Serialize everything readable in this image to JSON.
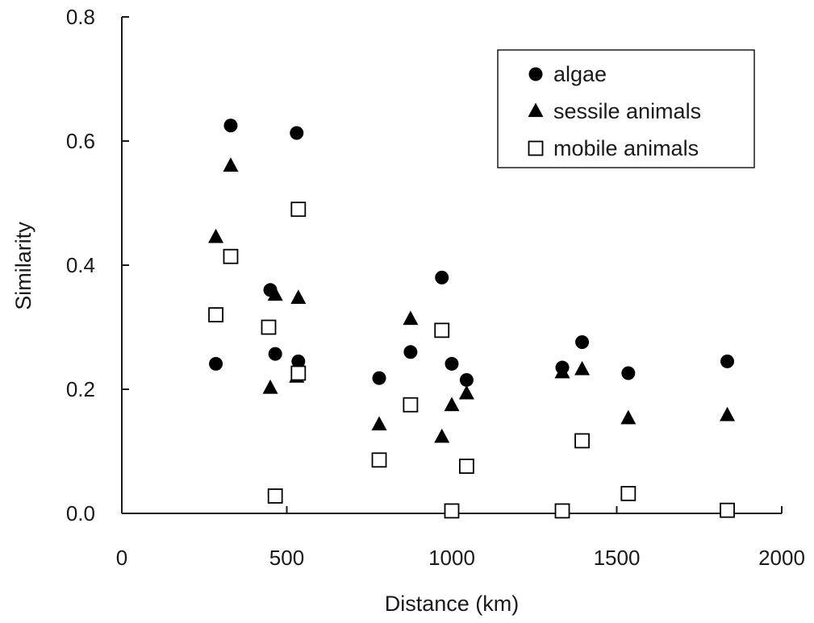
{
  "chart_data": {
    "type": "scatter",
    "xlabel": "Distance (km)",
    "ylabel": "Similarity",
    "xlim": [
      0,
      2000
    ],
    "ylim": [
      0,
      0.8
    ],
    "x_ticks": [
      "0",
      "500",
      "1000",
      "1500",
      "2000"
    ],
    "y_ticks": [
      "0.0",
      "0.2",
      "0.4",
      "0.6",
      "0.8"
    ],
    "grid": false,
    "legend_position": "top-right",
    "series": [
      {
        "name": "algae",
        "marker": "filled-circle",
        "color": "#000000",
        "points": [
          {
            "x": 285,
            "y": 0.241
          },
          {
            "x": 330,
            "y": 0.625
          },
          {
            "x": 450,
            "y": 0.36
          },
          {
            "x": 465,
            "y": 0.257
          },
          {
            "x": 530,
            "y": 0.613
          },
          {
            "x": 535,
            "y": 0.245
          },
          {
            "x": 780,
            "y": 0.218
          },
          {
            "x": 875,
            "y": 0.26
          },
          {
            "x": 970,
            "y": 0.38
          },
          {
            "x": 1000,
            "y": 0.241
          },
          {
            "x": 1045,
            "y": 0.215
          },
          {
            "x": 1335,
            "y": 0.235
          },
          {
            "x": 1395,
            "y": 0.276
          },
          {
            "x": 1535,
            "y": 0.226
          },
          {
            "x": 1835,
            "y": 0.245
          }
        ]
      },
      {
        "name": "sessile animals",
        "marker": "filled-triangle",
        "color": "#000000",
        "points": [
          {
            "x": 285,
            "y": 0.445
          },
          {
            "x": 330,
            "y": 0.56
          },
          {
            "x": 450,
            "y": 0.202
          },
          {
            "x": 465,
            "y": 0.352
          },
          {
            "x": 530,
            "y": 0.22
          },
          {
            "x": 535,
            "y": 0.347
          },
          {
            "x": 780,
            "y": 0.143
          },
          {
            "x": 875,
            "y": 0.313
          },
          {
            "x": 970,
            "y": 0.123
          },
          {
            "x": 1000,
            "y": 0.174
          },
          {
            "x": 1045,
            "y": 0.193
          },
          {
            "x": 1335,
            "y": 0.227
          },
          {
            "x": 1395,
            "y": 0.232
          },
          {
            "x": 1535,
            "y": 0.153
          },
          {
            "x": 1835,
            "y": 0.158
          }
        ]
      },
      {
        "name": "mobile animals",
        "marker": "open-square",
        "color": "#000000",
        "points": [
          {
            "x": 285,
            "y": 0.32
          },
          {
            "x": 330,
            "y": 0.414
          },
          {
            "x": 445,
            "y": 0.3
          },
          {
            "x": 465,
            "y": 0.028
          },
          {
            "x": 535,
            "y": 0.49
          },
          {
            "x": 535,
            "y": 0.226
          },
          {
            "x": 780,
            "y": 0.086
          },
          {
            "x": 875,
            "y": 0.175
          },
          {
            "x": 970,
            "y": 0.295
          },
          {
            "x": 1000,
            "y": 0.004
          },
          {
            "x": 1045,
            "y": 0.076
          },
          {
            "x": 1335,
            "y": 0.004
          },
          {
            "x": 1395,
            "y": 0.117
          },
          {
            "x": 1535,
            "y": 0.032
          },
          {
            "x": 1835,
            "y": 0.005
          }
        ]
      }
    ]
  }
}
